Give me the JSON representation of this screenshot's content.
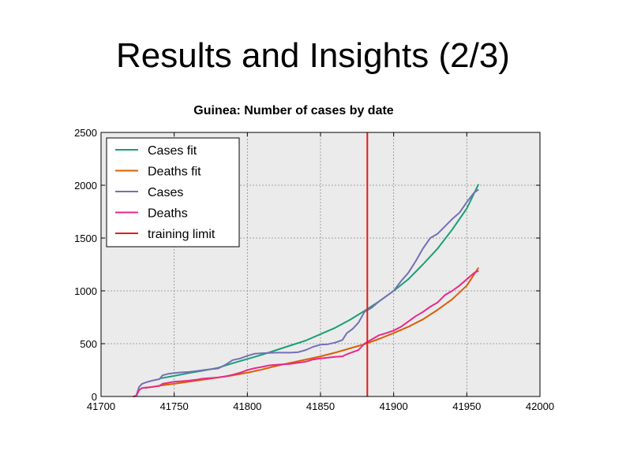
{
  "slide": {
    "title": "Results and Insights (2/3)"
  },
  "chart_data": {
    "type": "line",
    "title": "Guinea: Number of cases by date",
    "xlabel": "",
    "ylabel": "",
    "xlim": [
      41700,
      42000
    ],
    "ylim": [
      0,
      2500
    ],
    "xticks": [
      41700,
      41750,
      41800,
      41850,
      41900,
      41950,
      42000
    ],
    "yticks": [
      0,
      500,
      1000,
      1500,
      2000,
      2500
    ],
    "grid": true,
    "legend_position": "top-left",
    "colors": {
      "plot_bg": "#ebebeb",
      "grid": "#8c8c8c"
    },
    "series": [
      {
        "name": "Cases fit",
        "color": "#1b9e77",
        "points": [
          [
            41740,
            170
          ],
          [
            41750,
            195
          ],
          [
            41760,
            222
          ],
          [
            41770,
            245
          ],
          [
            41780,
            272
          ],
          [
            41790,
            315
          ],
          [
            41800,
            355
          ],
          [
            41810,
            395
          ],
          [
            41820,
            440
          ],
          [
            41830,
            485
          ],
          [
            41840,
            530
          ],
          [
            41850,
            590
          ],
          [
            41860,
            650
          ],
          [
            41870,
            725
          ],
          [
            41880,
            810
          ],
          [
            41890,
            900
          ],
          [
            41900,
            1000
          ],
          [
            41910,
            1110
          ],
          [
            41920,
            1250
          ],
          [
            41930,
            1400
          ],
          [
            41940,
            1580
          ],
          [
            41950,
            1780
          ],
          [
            41958,
            2010
          ]
        ]
      },
      {
        "name": "Deaths fit",
        "color": "#d95f02",
        "points": [
          [
            41730,
            80
          ],
          [
            41740,
            102
          ],
          [
            41750,
            120
          ],
          [
            41760,
            140
          ],
          [
            41770,
            160
          ],
          [
            41780,
            180
          ],
          [
            41790,
            200
          ],
          [
            41800,
            225
          ],
          [
            41810,
            255
          ],
          [
            41820,
            290
          ],
          [
            41830,
            320
          ],
          [
            41840,
            350
          ],
          [
            41850,
            380
          ],
          [
            41860,
            415
          ],
          [
            41870,
            455
          ],
          [
            41880,
            495
          ],
          [
            41890,
            545
          ],
          [
            41900,
            600
          ],
          [
            41910,
            660
          ],
          [
            41920,
            730
          ],
          [
            41930,
            820
          ],
          [
            41940,
            920
          ],
          [
            41950,
            1050
          ],
          [
            41958,
            1220
          ]
        ]
      },
      {
        "name": "Cases",
        "color": "#7570b3",
        "points": [
          [
            41722,
            0
          ],
          [
            41724,
            5
          ],
          [
            41726,
            90
          ],
          [
            41728,
            120
          ],
          [
            41731,
            135
          ],
          [
            41735,
            150
          ],
          [
            41740,
            165
          ],
          [
            41742,
            200
          ],
          [
            41746,
            215
          ],
          [
            41750,
            222
          ],
          [
            41755,
            228
          ],
          [
            41760,
            232
          ],
          [
            41765,
            240
          ],
          [
            41770,
            250
          ],
          [
            41775,
            258
          ],
          [
            41780,
            265
          ],
          [
            41785,
            300
          ],
          [
            41790,
            345
          ],
          [
            41795,
            360
          ],
          [
            41800,
            385
          ],
          [
            41805,
            405
          ],
          [
            41810,
            410
          ],
          [
            41815,
            412
          ],
          [
            41820,
            415
          ],
          [
            41825,
            415
          ],
          [
            41830,
            415
          ],
          [
            41835,
            420
          ],
          [
            41840,
            440
          ],
          [
            41845,
            470
          ],
          [
            41850,
            490
          ],
          [
            41855,
            495
          ],
          [
            41860,
            510
          ],
          [
            41865,
            535
          ],
          [
            41868,
            600
          ],
          [
            41872,
            640
          ],
          [
            41876,
            700
          ],
          [
            41880,
            800
          ],
          [
            41885,
            840
          ],
          [
            41890,
            900
          ],
          [
            41895,
            950
          ],
          [
            41900,
            1000
          ],
          [
            41905,
            1090
          ],
          [
            41910,
            1170
          ],
          [
            41915,
            1280
          ],
          [
            41920,
            1400
          ],
          [
            41925,
            1500
          ],
          [
            41930,
            1540
          ],
          [
            41935,
            1610
          ],
          [
            41940,
            1680
          ],
          [
            41945,
            1740
          ],
          [
            41950,
            1840
          ],
          [
            41955,
            1930
          ],
          [
            41958,
            1960
          ]
        ]
      },
      {
        "name": "Deaths",
        "color": "#e7298a",
        "points": [
          [
            41722,
            0
          ],
          [
            41724,
            5
          ],
          [
            41726,
            60
          ],
          [
            41728,
            80
          ],
          [
            41731,
            85
          ],
          [
            41735,
            90
          ],
          [
            41740,
            100
          ],
          [
            41742,
            120
          ],
          [
            41746,
            130
          ],
          [
            41750,
            140
          ],
          [
            41755,
            145
          ],
          [
            41760,
            150
          ],
          [
            41765,
            158
          ],
          [
            41770,
            170
          ],
          [
            41775,
            175
          ],
          [
            41780,
            180
          ],
          [
            41785,
            190
          ],
          [
            41790,
            205
          ],
          [
            41795,
            225
          ],
          [
            41800,
            250
          ],
          [
            41805,
            268
          ],
          [
            41810,
            280
          ],
          [
            41815,
            295
          ],
          [
            41820,
            300
          ],
          [
            41825,
            305
          ],
          [
            41830,
            310
          ],
          [
            41835,
            320
          ],
          [
            41840,
            330
          ],
          [
            41845,
            350
          ],
          [
            41850,
            360
          ],
          [
            41855,
            368
          ],
          [
            41860,
            375
          ],
          [
            41865,
            380
          ],
          [
            41868,
            400
          ],
          [
            41872,
            420
          ],
          [
            41876,
            440
          ],
          [
            41880,
            500
          ],
          [
            41885,
            540
          ],
          [
            41890,
            580
          ],
          [
            41895,
            600
          ],
          [
            41900,
            625
          ],
          [
            41905,
            660
          ],
          [
            41910,
            710
          ],
          [
            41915,
            760
          ],
          [
            41920,
            800
          ],
          [
            41925,
            850
          ],
          [
            41930,
            890
          ],
          [
            41935,
            960
          ],
          [
            41940,
            1000
          ],
          [
            41945,
            1050
          ],
          [
            41950,
            1110
          ],
          [
            41955,
            1170
          ],
          [
            41958,
            1190
          ]
        ]
      }
    ],
    "vline": {
      "name": "training limit",
      "x": 41882,
      "color": "#e41a1c"
    },
    "legend": [
      "Cases fit",
      "Deaths fit",
      "Cases",
      "Deaths",
      "training limit"
    ]
  }
}
